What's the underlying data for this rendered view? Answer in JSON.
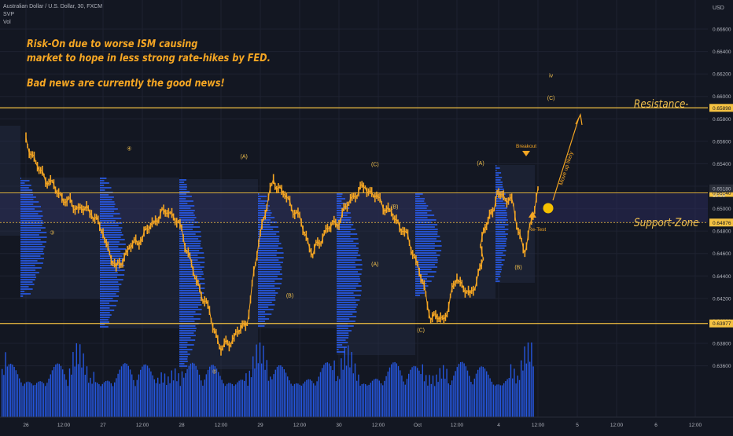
{
  "header": {
    "symbol_line": "Australian Dollar / U.S. Dollar, 30, FXCM",
    "indicator_1": "SVP",
    "indicator_2": "Vol"
  },
  "annotations": {
    "note_line_1": "Risk-On due to worse ISM causing",
    "note_line_2": "market to hope in less strong rate-hikes by FED.",
    "note_line_3": "Bad news are currently the good news!",
    "resistance_label": "Resistance-Zone",
    "support_label": "Support-Zone",
    "breakout": "Breakout",
    "retest": "Re-Test",
    "move_up": "Move up likely",
    "wave_labels": [
      {
        "text": "④",
        "x": "27 08:00",
        "y": 0.6552
      },
      {
        "text": "③",
        "x": "26 08:00",
        "y": 0.6477
      },
      {
        "text": "⑤",
        "x": "28 10:00",
        "y": 0.6353
      },
      {
        "text": "(A)",
        "x": "28 19:00",
        "y": 0.6545
      },
      {
        "text": "(B)",
        "x": "29 09:00",
        "y": 0.6421
      },
      {
        "text": "(C)",
        "x": "30 11:00",
        "y": 0.6538
      },
      {
        "text": "(B)",
        "x": "30 17:00",
        "y": 0.65
      },
      {
        "text": "(A)",
        "x": "30 11:00",
        "y": 0.6449
      },
      {
        "text": "(C)",
        "x": "1 01:00",
        "y": 0.639
      },
      {
        "text": "(A)",
        "x": "3 20:00",
        "y": 0.6539
      },
      {
        "text": "(B)",
        "x": "4 06:00",
        "y": 0.6446
      },
      {
        "text": "iv",
        "x": "4 16:00",
        "y": 0.6617
      },
      {
        "text": "(C)",
        "x": "4 16:00",
        "y": 0.6597
      }
    ]
  },
  "chart_data": {
    "type": "line",
    "title": "Australian Dollar / U.S. Dollar, 30, FXCM",
    "currency": "USD",
    "x_tick_labels": [
      "26",
      "12:00",
      "27",
      "12:00",
      "28",
      "12:00",
      "29",
      "12:00",
      "30",
      "12:00",
      "Oct",
      "12:00",
      "4",
      "12:00",
      "5",
      "12:00",
      "6",
      "12:00"
    ],
    "y_tick_labels": [
      "0.66600",
      "0.66400",
      "0.66200",
      "0.66000",
      "0.65800",
      "0.65600",
      "0.65400",
      "0.65200",
      "0.65000",
      "0.64800",
      "0.64600",
      "0.64400",
      "0.64200",
      "0.64000",
      "0.63800",
      "0.63600"
    ],
    "ylim": [
      0.635,
      0.668
    ],
    "price_levels": [
      {
        "name": "Resistance",
        "value": "0.65898",
        "color": "#f5c242"
      },
      {
        "name": "Support upper",
        "value": "0.65140",
        "color": "#f5c242"
      },
      {
        "name": "Support lower",
        "value": "0.64876",
        "color": "#f5c242"
      },
      {
        "name": "Low",
        "value": "0.63977",
        "color": "#f5c242"
      },
      {
        "name": "Current",
        "value": "0.65180",
        "color": "#131722"
      }
    ],
    "current_countdown": "15:58",
    "series": [
      {
        "x": [
          "26 00:00",
          "26 04:00",
          "26 08:00",
          "26 12:00",
          "26 16:00",
          "26 20:00",
          "27 00:00",
          "27 04:00",
          "27 08:00",
          "27 12:00",
          "27 16:00",
          "27 20:00",
          "28 00:00",
          "28 04:00",
          "28 08:00",
          "28 12:00",
          "28 16:00",
          "28 20:00",
          "29 00:00",
          "29 04:00",
          "29 08:00",
          "29 12:00",
          "29 16:00",
          "29 20:00",
          "30 00:00",
          "30 04:00",
          "30 08:00",
          "30 12:00",
          "30 16:00",
          "30 20:00",
          "1 00:00",
          "1 04:00",
          "1 08:00",
          "1 12:00",
          "1 16:00",
          "1 20:00",
          "3 20:00",
          "4 00:00",
          "4 04:00",
          "4 08:00",
          "4 12:00"
        ],
        "values": [
          0.656,
          0.6535,
          0.652,
          0.6508,
          0.65,
          0.6498,
          0.6478,
          0.6445,
          0.6465,
          0.6475,
          0.649,
          0.65,
          0.648,
          0.644,
          0.641,
          0.6375,
          0.6385,
          0.64,
          0.648,
          0.6525,
          0.651,
          0.649,
          0.646,
          0.648,
          0.649,
          0.651,
          0.652,
          0.6508,
          0.6495,
          0.648,
          0.645,
          0.6405,
          0.64,
          0.644,
          0.642,
          0.6455,
          0.647,
          0.6515,
          0.6505,
          0.646,
          0.6518
        ]
      }
    ],
    "volume_profile_blocks": [
      {
        "start": "26 00:00",
        "end": "26 20:00"
      },
      {
        "start": "27 00:00",
        "end": "27 20:00"
      },
      {
        "start": "28 00:00",
        "end": "28 20:00"
      },
      {
        "start": "29 00:00",
        "end": "29 20:00"
      },
      {
        "start": "30 00:00",
        "end": "30 20:00"
      },
      {
        "start": "1 00:00",
        "end": "1 20:00"
      },
      {
        "start": "3 20:00",
        "end": "4 12:00"
      }
    ],
    "grid": true,
    "legend": "top-left"
  },
  "colors": {
    "background": "#131722",
    "price": "#f5a623",
    "zone": "#f5c242",
    "support_band": "#2a2a5a",
    "volume": "#2962ff",
    "text": "#b2b5be"
  }
}
